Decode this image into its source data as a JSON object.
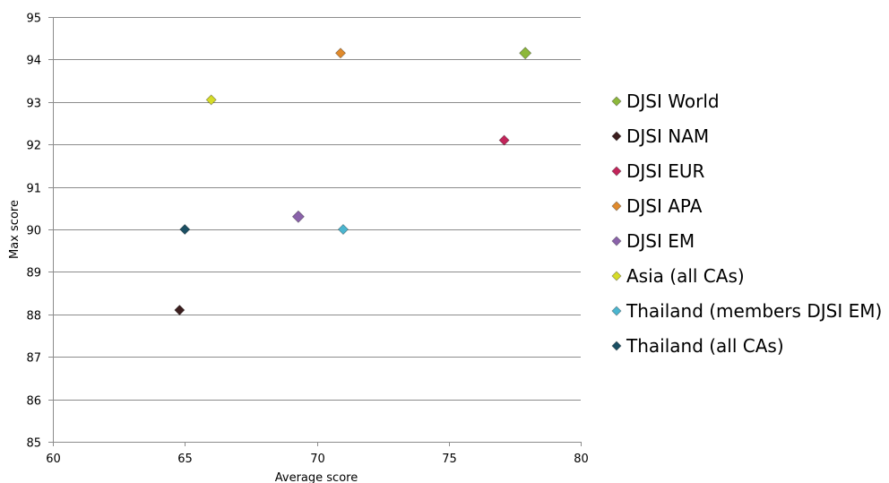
{
  "chart_data": {
    "type": "scatter",
    "xlabel": "Average score",
    "ylabel": "Max score",
    "xlim": [
      60,
      80
    ],
    "ylim": [
      85,
      95
    ],
    "x_ticks": [
      60,
      65,
      70,
      75,
      80
    ],
    "y_ticks": [
      85,
      86,
      87,
      88,
      89,
      90,
      91,
      92,
      93,
      94,
      95
    ],
    "grid": "horizontal",
    "legend_position": "right",
    "series": [
      {
        "name": "DJSI World",
        "color": "#8DB83B",
        "points": [
          {
            "x": 77.9,
            "y": 94.15
          }
        ],
        "large": true
      },
      {
        "name": "DJSI NAM",
        "color": "#3B1E1E",
        "points": [
          {
            "x": 64.8,
            "y": 88.1
          }
        ],
        "large": false
      },
      {
        "name": "DJSI EUR",
        "color": "#C2245A",
        "points": [
          {
            "x": 77.1,
            "y": 92.1
          }
        ],
        "large": false
      },
      {
        "name": "DJSI APA",
        "color": "#E08A2C",
        "points": [
          {
            "x": 70.9,
            "y": 94.15
          }
        ],
        "large": false
      },
      {
        "name": "DJSI EM",
        "color": "#8A62AA",
        "points": [
          {
            "x": 69.3,
            "y": 90.3
          }
        ],
        "large": true
      },
      {
        "name": "Asia (all CAs)",
        "color": "#D6DC28",
        "points": [
          {
            "x": 66.0,
            "y": 93.05
          }
        ],
        "large": false
      },
      {
        "name": "Thailand (members DJSI EM)",
        "color": "#4BB6D0",
        "points": [
          {
            "x": 71.0,
            "y": 90.0
          }
        ],
        "large": false
      },
      {
        "name": "Thailand (all CAs)",
        "color": "#1B4F63",
        "points": [
          {
            "x": 65.0,
            "y": 90.0
          }
        ],
        "large": false
      }
    ]
  }
}
